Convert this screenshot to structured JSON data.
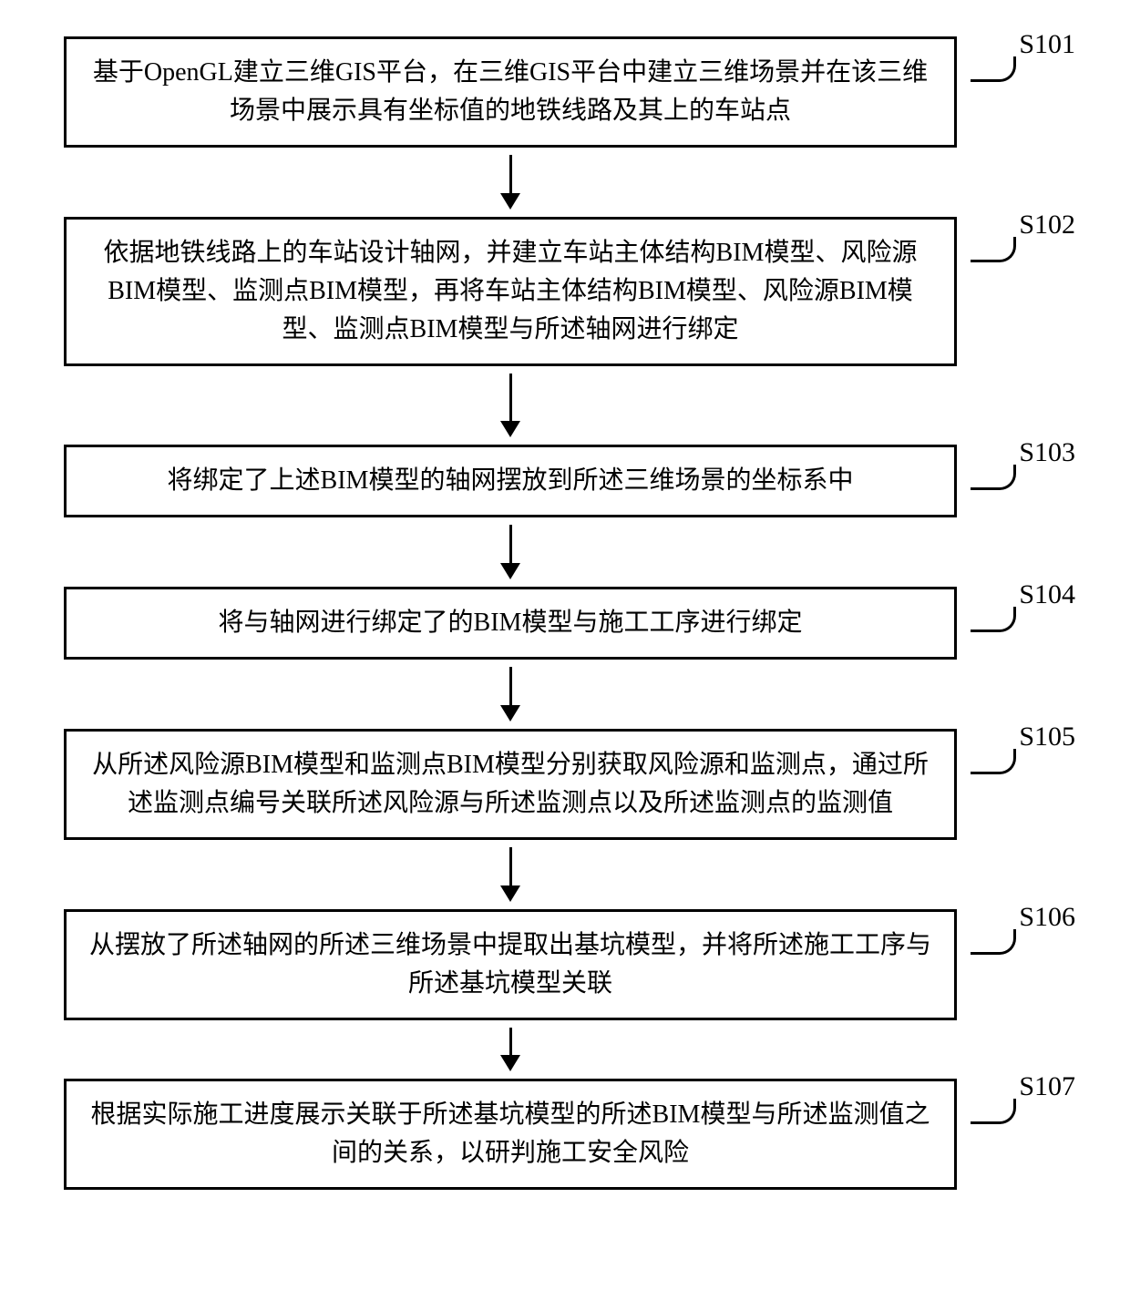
{
  "flowchart": {
    "type": "flowchart",
    "direction": "vertical",
    "background_color": "#ffffff",
    "box_border_color": "#000000",
    "box_border_width": 3,
    "box_background_color": "#ffffff",
    "text_color": "#000000",
    "font_family": "SimSun",
    "font_size": 28,
    "label_font_size": 30,
    "arrow_color": "#000000",
    "arrow_width": 3,
    "steps": [
      {
        "id": "S101",
        "text": "基于OpenGL建立三维GIS平台，在三维GIS平台中建立三维场景并在该三维场景中展示具有坐标值的地铁线路及其上的车站点",
        "arrow_height": "med"
      },
      {
        "id": "S102",
        "text": "依据地铁线路上的车站设计轴网，并建立车站主体结构BIM模型、风险源BIM模型、监测点BIM模型，再将车站主体结构BIM模型、风险源BIM模型、监测点BIM模型与所述轴网进行绑定",
        "arrow_height": "tall"
      },
      {
        "id": "S103",
        "text": "将绑定了上述BIM模型的轴网摆放到所述三维场景的坐标系中",
        "arrow_height": "med"
      },
      {
        "id": "S104",
        "text": "将与轴网进行绑定了的BIM模型与施工工序进行绑定",
        "arrow_height": "med"
      },
      {
        "id": "S105",
        "text": "从所述风险源BIM模型和监测点BIM模型分别获取风险源和监测点，通过所述监测点编号关联所述风险源与所述监测点以及所述监测点的监测值",
        "arrow_height": "med"
      },
      {
        "id": "S106",
        "text": "从摆放了所述轴网的所述三维场景中提取出基坑模型，并将所述施工工序与所述基坑模型关联",
        "arrow_height": "short"
      },
      {
        "id": "S107",
        "text": "根据实际施工进度展示关联于所述基坑模型的所述BIM模型与所述监测值之间的关系，以研判施工安全风险",
        "arrow_height": null
      }
    ]
  }
}
